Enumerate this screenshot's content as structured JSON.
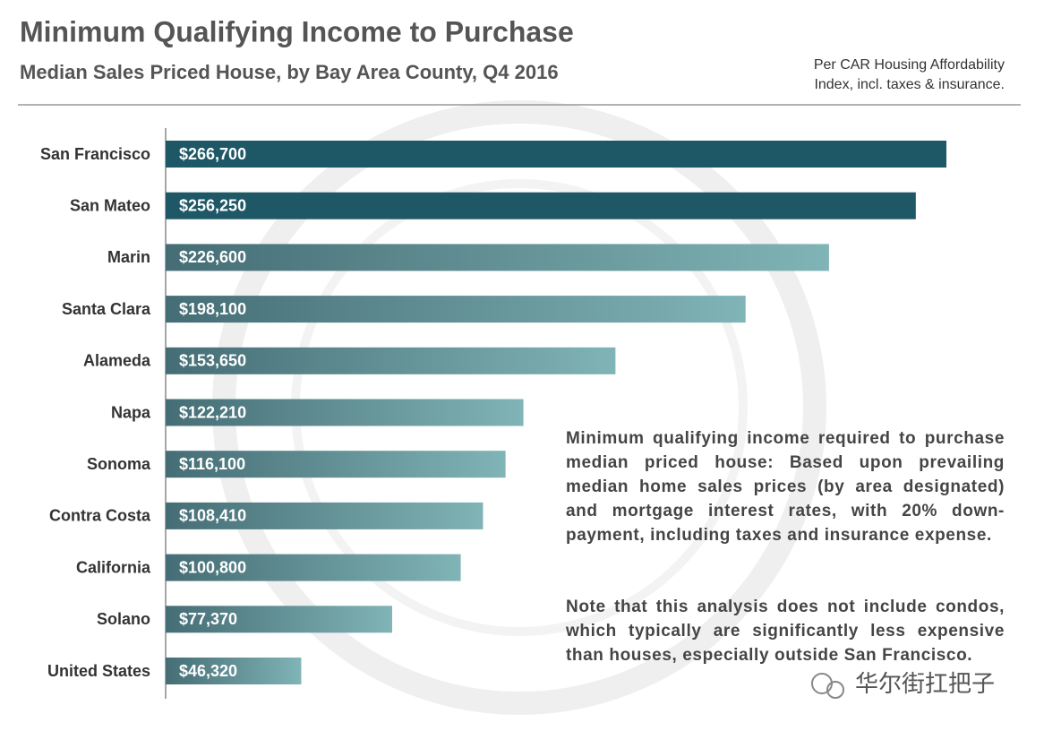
{
  "chart_data": {
    "type": "bar",
    "orientation": "horizontal",
    "title": "Minimum Qualifying Income to Purchase",
    "subtitle": "Median Sales Priced House, by Bay Area County, Q4 2016",
    "source_note": [
      "Per CAR Housing Affordability",
      "Index, incl. taxes & insurance."
    ],
    "categories": [
      "San Francisco",
      "San Mateo",
      "Marin",
      "Santa Clara",
      "Alameda",
      "Napa",
      "Sonoma",
      "Contra Costa",
      "California",
      "Solano",
      "United States"
    ],
    "values": [
      266700,
      256250,
      226600,
      198100,
      153650,
      122210,
      116100,
      108410,
      100800,
      77370,
      46320
    ],
    "value_labels": [
      "$266,700",
      "$256,250",
      "$226,600",
      "$198,100",
      "$153,650",
      "$122,210",
      "$116,100",
      "$108,410",
      "$100,800",
      "$77,370",
      "$46,320"
    ],
    "bar_styles": [
      "solid",
      "solid",
      "gradient",
      "gradient",
      "gradient",
      "gradient",
      "gradient",
      "gradient",
      "gradient",
      "gradient",
      "gradient"
    ],
    "solid_color": "#1e5766",
    "gradient_colors": [
      "#456d75",
      "#80b4b6"
    ],
    "annotations": [
      "Minimum qualifying income required to purchase median priced house: Based upon prevailing median home sales prices (by area designated) and mortgage interest rates, with 20% down-payment, including taxes and insurance expense.",
      "Note that this analysis does not include condos, which typically are significantly less expensive than houses, especially outside San Francisco."
    ],
    "watermark": "华尔街扛把子"
  }
}
